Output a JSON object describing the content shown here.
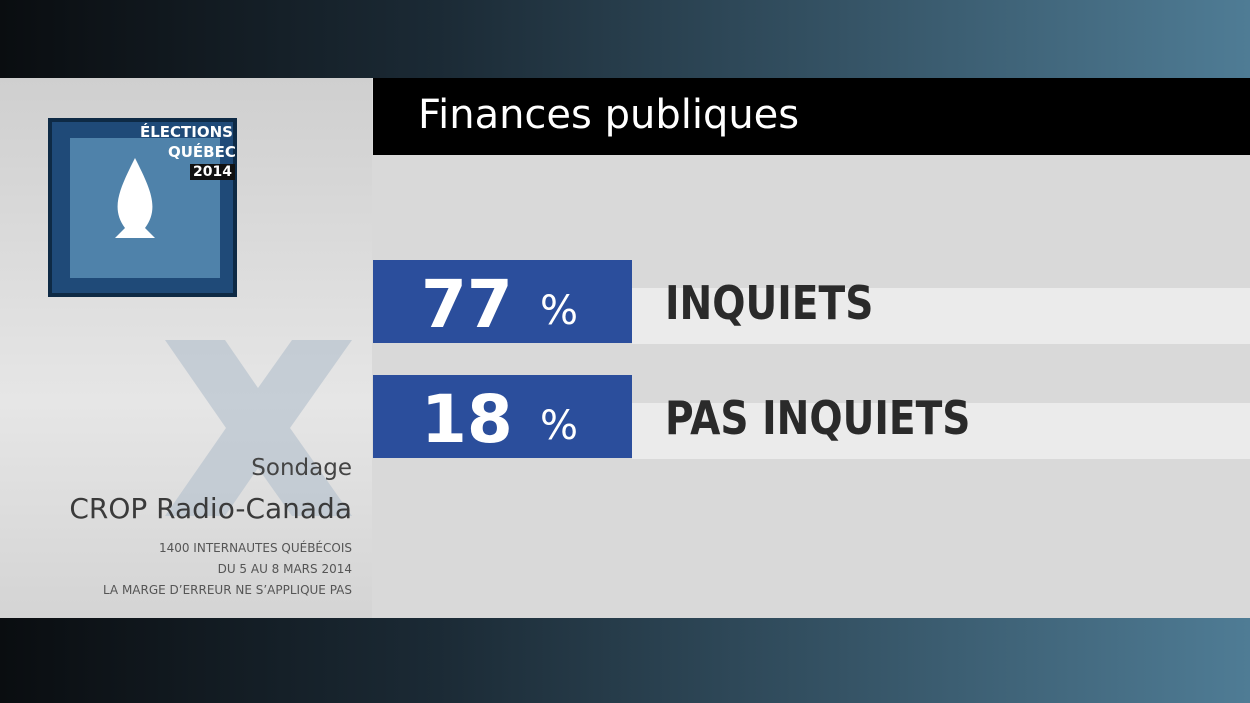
{
  "header": {
    "title": "Finances publiques"
  },
  "logo": {
    "line1": "ÉLECTIONS",
    "line2": "QUÉBEC",
    "year": "2014"
  },
  "source": {
    "label": "Sondage",
    "name": "CROP Radio-Canada",
    "notes": [
      "1400 INTERNAUTES QUÉBÉCOIS",
      "DU 5 AU 8 MARS 2014",
      "LA MARGE D’ERREUR NE S’APPLIQUE PAS"
    ]
  },
  "results": [
    {
      "value": 77,
      "unit": "%",
      "label": "INQUIETS"
    },
    {
      "value": 18,
      "unit": "%",
      "label": "PAS INQUIETS"
    }
  ]
}
